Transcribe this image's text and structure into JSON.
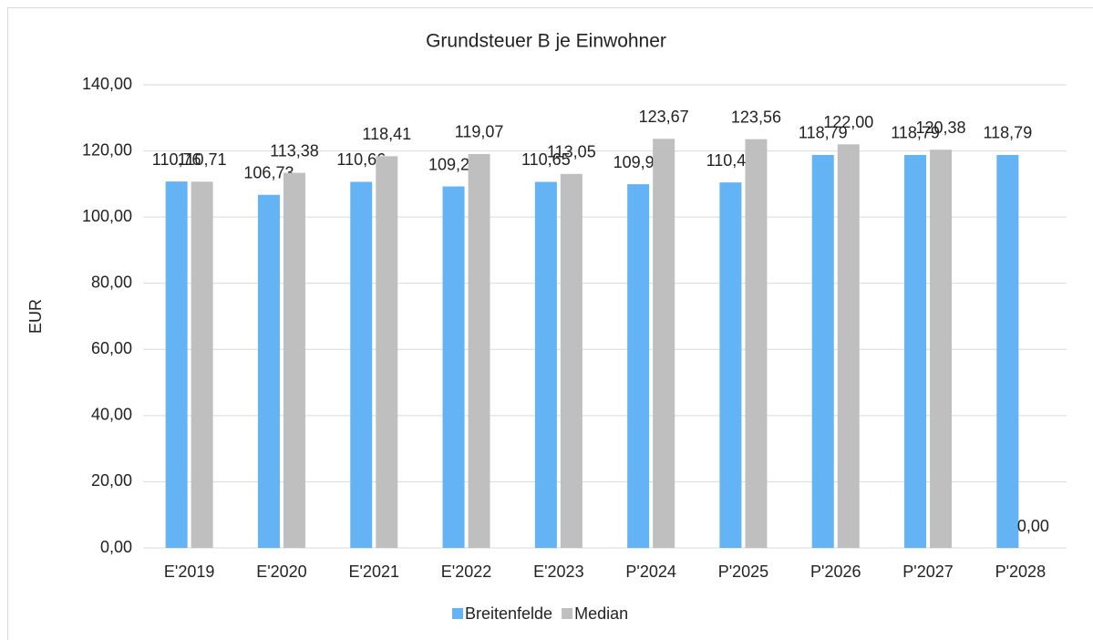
{
  "chart_data": {
    "type": "bar",
    "title": "Grundsteuer B je Einwohner",
    "y_label": "EUR",
    "categories": [
      "E'2019",
      "E'2020",
      "E'2021",
      "E'2022",
      "E'2023",
      "P'2024",
      "P'2025",
      "P'2026",
      "P'2027",
      "P'2028"
    ],
    "series": [
      {
        "name": "Breitenfelde",
        "color": "#63b3f5",
        "values": [
          110.76,
          106.73,
          110.66,
          109.27,
          110.65,
          109.94,
          110.48,
          118.79,
          118.79,
          118.79
        ],
        "value_labels": [
          "110,76",
          "106,73",
          "110,66",
          "109,27",
          "110,65",
          "109,94",
          "110,48",
          "118,79",
          "118,79",
          "118,79"
        ]
      },
      {
        "name": "Median",
        "color": "#bfbfbf",
        "values": [
          110.71,
          113.38,
          118.41,
          119.07,
          113.05,
          123.67,
          123.56,
          122.0,
          120.38,
          0.0
        ],
        "value_labels": [
          "110,71",
          "113,38",
          "118,41",
          "119,07",
          "113,05",
          "123,67",
          "123,56",
          "122,00",
          "120,38",
          "0,00"
        ]
      }
    ],
    "ylim": [
      0,
      140
    ],
    "yticks": [
      {
        "value": 0,
        "label": "0,00"
      },
      {
        "value": 20,
        "label": "20,00"
      },
      {
        "value": 40,
        "label": "40,00"
      },
      {
        "value": 60,
        "label": "60,00"
      },
      {
        "value": 80,
        "label": "80,00"
      },
      {
        "value": 100,
        "label": "100,00"
      },
      {
        "value": 120,
        "label": "120,00"
      },
      {
        "value": 140,
        "label": "140,00"
      }
    ],
    "grid": true,
    "legend": "bottom"
  }
}
